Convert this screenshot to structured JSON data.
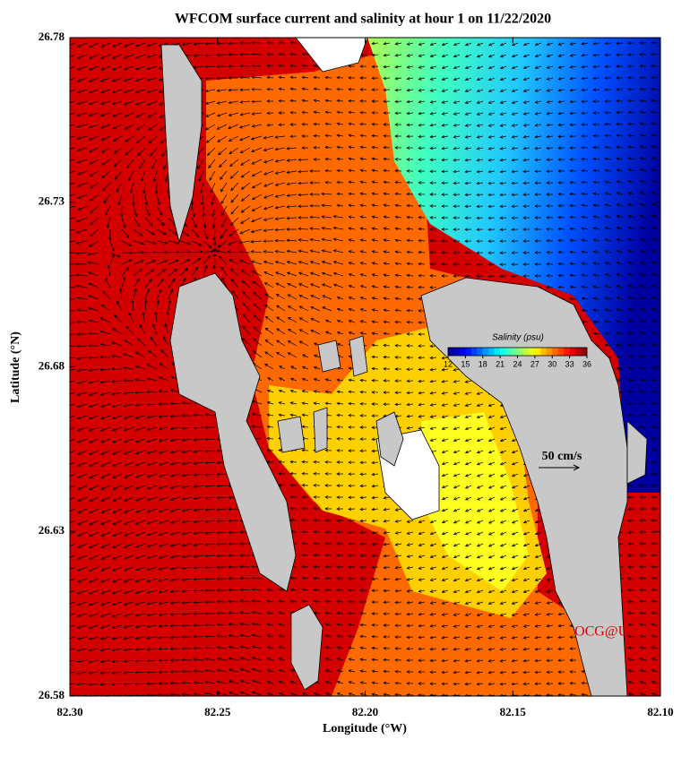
{
  "chart_data": {
    "type": "map",
    "title": "WFCOM surface current and salinity at hour 1 on 11/22/2020",
    "x_label": "Longitude (°W)",
    "y_label": "Latitude (°N)",
    "xlim": [
      82.3,
      82.1
    ],
    "xticks": [
      {
        "value": 82.3,
        "label": "82.30"
      },
      82.25,
      {
        "value": 82.2,
        "label": "82.20"
      },
      82.15,
      {
        "value": 82.1,
        "label": "82.10"
      }
    ],
    "ylim": [
      26.58,
      26.78
    ],
    "yticks": [
      26.58,
      26.63,
      26.68,
      26.73,
      26.78
    ],
    "colorbar": {
      "title": "Salinity (psu)",
      "lim": [
        12,
        36
      ],
      "ticks": [
        12,
        15,
        18,
        21,
        24,
        27,
        30,
        33,
        36
      ]
    },
    "reference_vector": {
      "label": "50 cm/s",
      "value": 50
    },
    "annotation": "OCG@USF"
  }
}
